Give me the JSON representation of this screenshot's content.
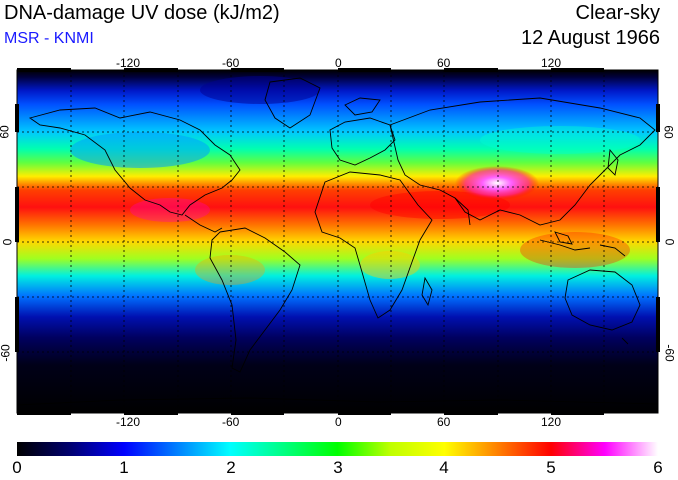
{
  "header": {
    "title": "DNA-damage UV dose (kJ/m2)",
    "credit": "MSR - KNMI",
    "sky_condition": "Clear-sky",
    "date": "12 August 1966"
  },
  "map": {
    "projection": "equirectangular",
    "lon_ticks": [
      "-120",
      "-60",
      "0",
      "60",
      "120"
    ],
    "lat_ticks": [
      "60",
      "0",
      "-60"
    ],
    "grid": "dotted",
    "coastlines": true
  },
  "colorbar": {
    "labels": [
      "0",
      "1",
      "2",
      "3",
      "4",
      "5",
      "6"
    ],
    "min": 0,
    "max": 6,
    "colors": [
      "#000000",
      "#0000ff",
      "#00ffff",
      "#00ff00",
      "#ffff00",
      "#ff0000",
      "#ff00ff",
      "#ffffff"
    ]
  }
}
